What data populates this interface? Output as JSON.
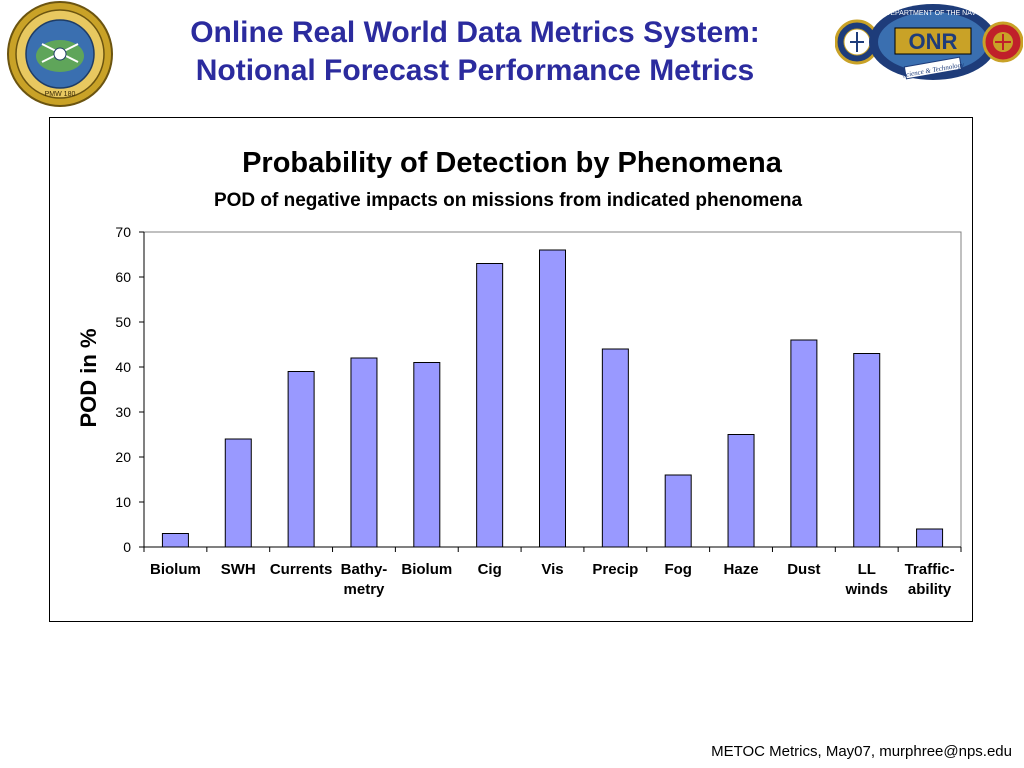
{
  "slide": {
    "title_line1": "Online Real World Data Metrics System:",
    "title_line2": "Notional Forecast Performance Metrics",
    "footer": "METOC Metrics, May07, murphree@nps.edu"
  },
  "logos": {
    "left": {
      "text_top": "INTELLIGENCE SURVEILLANCE RECONNAISSANCE",
      "text_bottom": "PMW 180"
    },
    "right": {
      "ring_text": "DEPARTMENT OF THE NAVY",
      "mark": "ONR",
      "banner": "Science & Technology"
    }
  },
  "colors": {
    "bar_fill": "#9999ff",
    "bar_stroke": "#000000",
    "title_blue": "#2b2b9e",
    "axis": "#000000",
    "plot_border": "#808080"
  },
  "chart_data": {
    "type": "bar",
    "title": "Probability of Detection by Phenomena",
    "subtitle": "POD of negative impacts on missions from indicated phenomena",
    "xlabel": "",
    "ylabel": "POD in %",
    "ylim": [
      0,
      70
    ],
    "yticks": [
      0,
      10,
      20,
      30,
      40,
      50,
      60,
      70
    ],
    "grid": false,
    "legend": "none",
    "categories": [
      [
        "Biolum"
      ],
      [
        "SWH"
      ],
      [
        "Currents"
      ],
      [
        "Bathy-",
        "metry"
      ],
      [
        "Biolum"
      ],
      [
        "Cig"
      ],
      [
        "Vis"
      ],
      [
        "Precip"
      ],
      [
        "Fog"
      ],
      [
        "Haze"
      ],
      [
        "Dust"
      ],
      [
        "LL",
        "winds"
      ],
      [
        "Traffic-",
        "ability"
      ]
    ],
    "values": [
      3,
      24,
      39,
      42,
      41,
      63,
      66,
      44,
      16,
      25,
      46,
      43,
      4
    ]
  }
}
